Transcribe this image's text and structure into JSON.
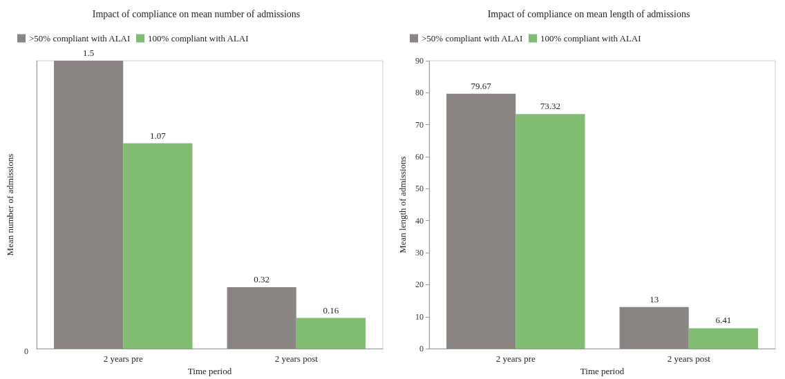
{
  "chart_data": [
    {
      "type": "bar",
      "title": "Impact of compliance on mean number of admissions",
      "xlabel": "Time period",
      "ylabel": "Mean number of admissions",
      "categories": [
        "2 years pre",
        "2 years post"
      ],
      "series": [
        {
          "name": ">50% compliant with ALAI",
          "color": "#8a8583",
          "values": [
            1.5,
            0.32
          ]
        },
        {
          "name": "100% compliant with ALAI",
          "color": "#7fbc72",
          "values": [
            1.07,
            0.16
          ]
        }
      ],
      "annotations": [
        "0"
      ],
      "grid": false,
      "legend": "top left",
      "data_labels": true
    },
    {
      "type": "bar",
      "title": "Impact of compliance on mean length of admissions",
      "xlabel": "Time period",
      "ylabel": "Mean length of admissions",
      "categories": [
        "2 years pre",
        "2 years post"
      ],
      "series": [
        {
          "name": ">50% compliant with ALAI",
          "color": "#8a8583",
          "values": [
            79.67,
            13
          ]
        },
        {
          "name": "100% compliant with ALAI",
          "color": "#7fbc72",
          "values": [
            73.32,
            6.41
          ]
        }
      ],
      "ylim": [
        0,
        90
      ],
      "yticks": [
        0,
        10,
        20,
        30,
        40,
        50,
        60,
        70,
        80,
        90
      ],
      "grid": false,
      "legend": "top left",
      "data_labels": true
    }
  ]
}
